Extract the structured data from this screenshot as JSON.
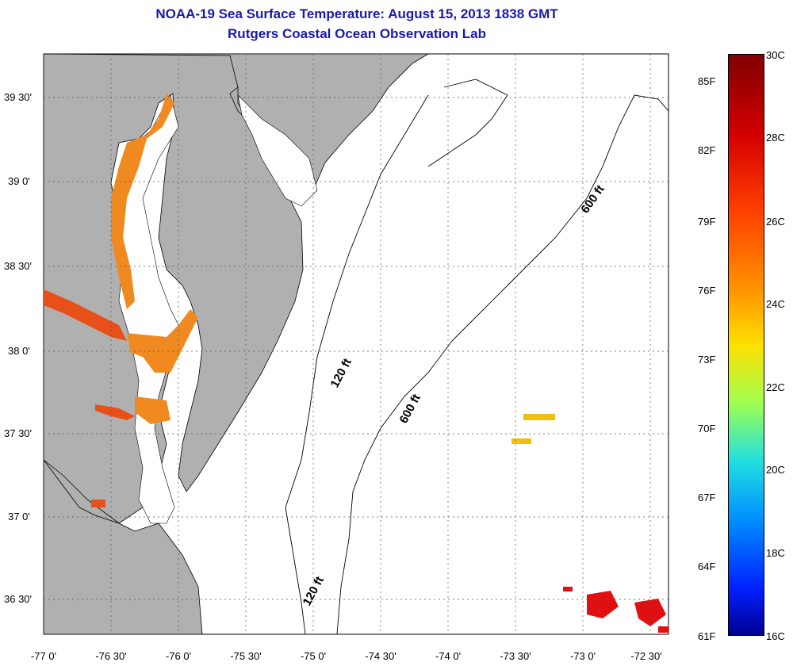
{
  "title": {
    "line1": "NOAA-19 Sea Surface Temperature:  August 15, 2013 1838 GMT",
    "line2": "Rutgers Coastal Ocean Observation Lab"
  },
  "map": {
    "lat_labels": [
      "39 30'",
      "39 0'",
      "38 30'",
      "38 0'",
      "37 30'",
      "37 0'",
      "36 30'"
    ],
    "lon_labels": [
      "-77 0'",
      "-76 30'",
      "-76 0'",
      "-75 30'",
      "-75 0'",
      "-74 30'",
      "-74 0'",
      "-73 30'",
      "-73 0'",
      "-72 30'"
    ],
    "contour_labels": [
      "600 ft",
      "120 ft",
      "600 ft",
      "120 ft"
    ],
    "colors": {
      "land": "#b0b0b0",
      "water": "#ffffff",
      "bay_warm": "#f08a20",
      "hot": "#e01010"
    }
  },
  "colorbar": {
    "fahrenheit": [
      "85F",
      "82F",
      "79F",
      "76F",
      "73F",
      "70F",
      "67F",
      "64F",
      "61F"
    ],
    "celsius": [
      "30C",
      "28C",
      "26C",
      "24C",
      "22C",
      "20C",
      "18C",
      "16C"
    ]
  }
}
